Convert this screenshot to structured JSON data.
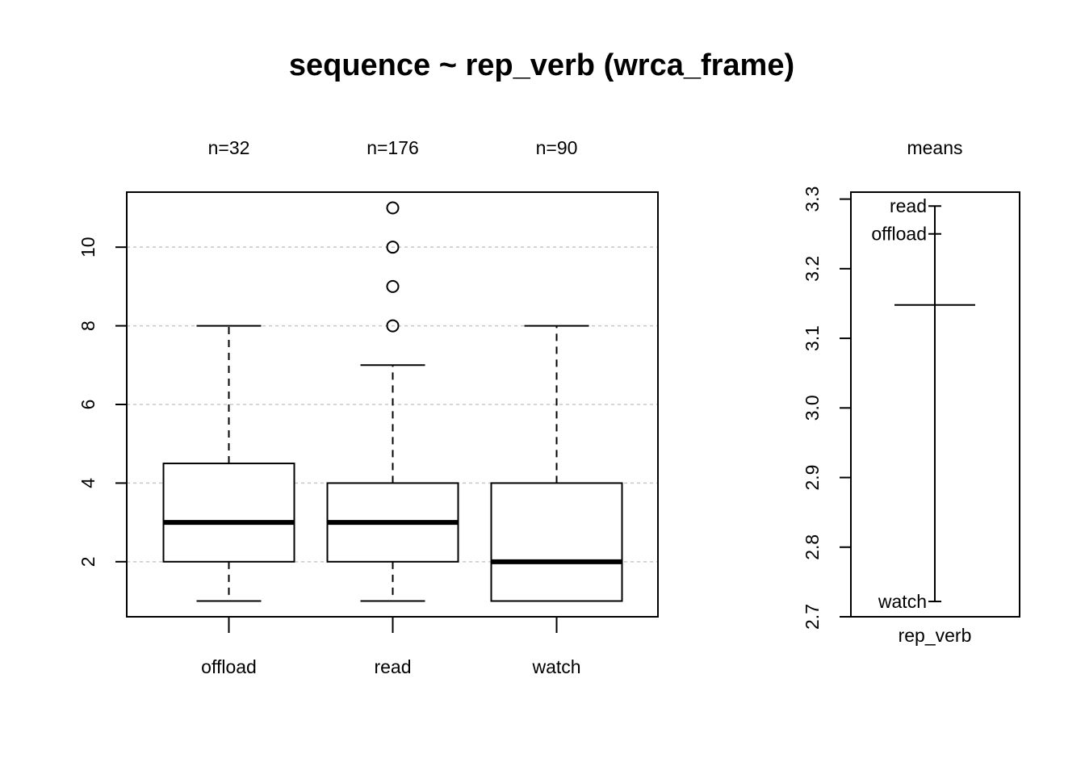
{
  "chart_data": [
    {
      "type": "boxplot",
      "title": "sequence ~ rep_verb (wrca_frame)",
      "xlabel": "",
      "ylabel": "",
      "ylim": [
        0.6,
        11.4
      ],
      "yticks": [
        2,
        4,
        6,
        8,
        10
      ],
      "grid": "horizontal dotted",
      "categories": [
        "offload",
        "read",
        "watch"
      ],
      "counts": [
        "n=32",
        "n=176",
        "n=90"
      ],
      "boxes": [
        {
          "name": "offload",
          "min": 1,
          "q1": 2,
          "median": 3,
          "q3": 4.5,
          "max": 8,
          "outliers": []
        },
        {
          "name": "read",
          "min": 1,
          "q1": 2,
          "median": 3,
          "q3": 4,
          "max": 7,
          "outliers": [
            8,
            9,
            10,
            11
          ]
        },
        {
          "name": "watch",
          "min": 1,
          "q1": 1,
          "median": 2,
          "q3": 4,
          "max": 8,
          "outliers": []
        }
      ]
    },
    {
      "type": "means",
      "title": "means",
      "xlabel": "rep_verb",
      "ylim": [
        2.7,
        3.31
      ],
      "yticks": [
        2.7,
        2.8,
        2.9,
        3.0,
        3.1,
        3.2,
        3.3
      ],
      "ytick_labels": [
        "2.7",
        "2.8",
        "2.9",
        "3.0",
        "3.1",
        "3.2",
        "3.3"
      ],
      "grand_mean": 3.148,
      "means": [
        {
          "name": "read",
          "value": 3.29
        },
        {
          "name": "offload",
          "value": 3.25
        },
        {
          "name": "watch",
          "value": 2.722
        }
      ]
    }
  ]
}
